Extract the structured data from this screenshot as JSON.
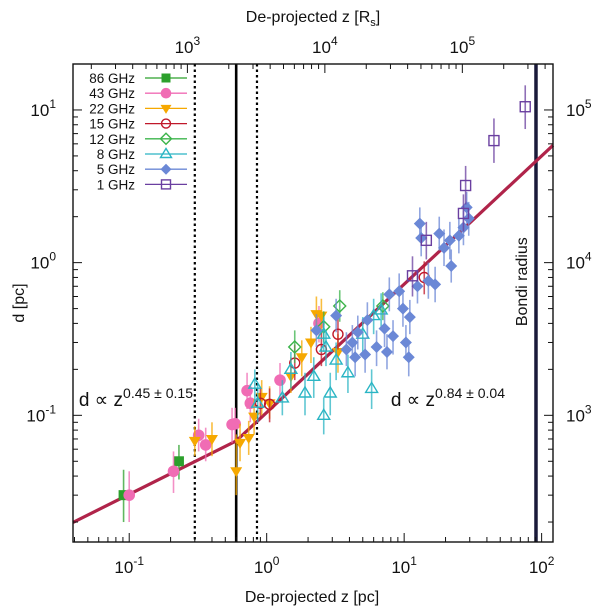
{
  "chart_data": {
    "type": "scatter",
    "title": "",
    "xlabel": "De-projected z [pc]",
    "ylabel": "d [pc]",
    "top_xlabel": "De-projected z [R_s]",
    "top_xlabel_main": "De-projected z [R",
    "top_xlabel_sub": "s",
    "top_xlabel_end": "]",
    "xscale": "log",
    "yscale": "log",
    "xlim": [
      0.039,
      121
    ],
    "ylim": [
      0.0148,
      20
    ],
    "x_ticks": [
      {
        "value": 0.1,
        "base": "10",
        "exp": "-1"
      },
      {
        "value": 1,
        "base": "10",
        "exp": "0"
      },
      {
        "value": 10,
        "base": "10",
        "exp": "1"
      },
      {
        "value": 100,
        "base": "10",
        "exp": "2"
      }
    ],
    "y_ticks": [
      {
        "value": 0.1,
        "base": "10",
        "exp": "-1"
      },
      {
        "value": 1,
        "base": "10",
        "exp": "0"
      },
      {
        "value": 10,
        "base": "10",
        "exp": "1"
      }
    ],
    "top_ticks_rs": [
      {
        "value_pc": 0.265,
        "base": "10",
        "exp": "3"
      },
      {
        "value_pc": 2.65,
        "base": "10",
        "exp": "4"
      },
      {
        "value_pc": 26.5,
        "base": "10",
        "exp": "5"
      }
    ],
    "right_ticks_rs": [
      {
        "value_pc": 0.1,
        "base": "10",
        "exp": "3"
      },
      {
        "value_pc": 1.0,
        "base": "10",
        "exp": "4"
      },
      {
        "value_pc": 10.0,
        "base": "10",
        "exp": "5"
      }
    ],
    "legend_position": "top-left",
    "grid": false,
    "vertical_lines": [
      {
        "name": "break-lower-bound",
        "z": 0.3,
        "style": "dotted",
        "color": "#000000"
      },
      {
        "name": "break-point",
        "z": 0.6,
        "style": "solid",
        "color": "#000000"
      },
      {
        "name": "break-upper-bound",
        "z": 0.85,
        "style": "dotted",
        "color": "#000000"
      },
      {
        "name": "bondi-radius",
        "z": 91,
        "style": "solid",
        "color": "#1a1a3a",
        "label": "Bondi radius"
      }
    ],
    "fit": {
      "color": "#b0244a",
      "break_z": 0.6,
      "break_d": 0.068,
      "inner_slope": 0.45,
      "outer_slope": 0.84
    },
    "annotations": [
      {
        "name": "inner-fit-label",
        "prefix": "d ∝ z",
        "exponent": "0.45 ± 0.15",
        "z": 0.043,
        "d": 0.115
      },
      {
        "name": "outer-fit-label",
        "prefix": "d ∝ z",
        "exponent": "0.84 ± 0.04",
        "z": 8.0,
        "d": 0.115
      }
    ],
    "series": [
      {
        "name": "86 GHz",
        "color": "#2ca02c",
        "marker": "square-filled",
        "points": [
          [
            0.091,
            0.03,
            0.02,
            0.044
          ],
          [
            0.23,
            0.05,
            0.038,
            0.064
          ]
        ]
      },
      {
        "name": "43 GHz",
        "color": "#f06cb4",
        "marker": "circle-filled",
        "points": [
          [
            0.1,
            0.03,
            0.02,
            0.043
          ],
          [
            0.21,
            0.043,
            0.031,
            0.058
          ],
          [
            0.32,
            0.074,
            0.058,
            0.095
          ],
          [
            0.36,
            0.064,
            0.05,
            0.083
          ],
          [
            0.56,
            0.087,
            0.066,
            0.112
          ],
          [
            0.59,
            0.088,
            0.07,
            0.112
          ],
          [
            0.72,
            0.145,
            0.11,
            0.19
          ],
          [
            0.76,
            0.12,
            0.09,
            0.16
          ],
          [
            2.4,
            0.4,
            0.3,
            0.52
          ],
          [
            1.25,
            0.17,
            0.13,
            0.22
          ]
        ]
      },
      {
        "name": "22 GHz",
        "color": "#f6a800",
        "marker": "triangle-down-filled",
        "points": [
          [
            0.3,
            0.068,
            0.054,
            0.085
          ],
          [
            0.4,
            0.07,
            0.054,
            0.09
          ],
          [
            0.6,
            0.043,
            0.03,
            0.075
          ],
          [
            0.64,
            0.066,
            0.05,
            0.088
          ],
          [
            0.74,
            0.071,
            0.055,
            0.092
          ],
          [
            0.81,
            0.098,
            0.075,
            0.128
          ],
          [
            0.92,
            0.132,
            0.1,
            0.17
          ],
          [
            1.05,
            0.12,
            0.095,
            0.155
          ],
          [
            1.5,
            0.18,
            0.14,
            0.24
          ],
          [
            1.8,
            0.24,
            0.18,
            0.31
          ],
          [
            2.3,
            0.46,
            0.35,
            0.6
          ],
          [
            2.5,
            0.45,
            0.34,
            0.58
          ],
          [
            2.1,
            0.3,
            0.22,
            0.38
          ],
          [
            3.3,
            0.26,
            0.19,
            0.34
          ]
        ]
      },
      {
        "name": "15 GHz",
        "color": "#c0182a",
        "marker": "circle-open",
        "points": [
          [
            1.05,
            0.118,
            0.09,
            0.15
          ],
          [
            1.6,
            0.22,
            0.17,
            0.29
          ],
          [
            2.5,
            0.27,
            0.21,
            0.35
          ],
          [
            3.3,
            0.34,
            0.27,
            0.44
          ],
          [
            14.0,
            0.8,
            0.62,
            1.02
          ],
          [
            0.9,
            0.12,
            0.095,
            0.15
          ]
        ]
      },
      {
        "name": "12 GHz",
        "color": "#3cb44b",
        "marker": "diamond-open",
        "points": [
          [
            1.6,
            0.28,
            0.22,
            0.36
          ],
          [
            3.4,
            0.52,
            0.41,
            0.66
          ],
          [
            2.6,
            0.38,
            0.3,
            0.48
          ],
          [
            7.0,
            0.52,
            0.42,
            0.64
          ]
        ]
      },
      {
        "name": "8 GHz",
        "color": "#2ab5c4",
        "marker": "triangle-up-open",
        "points": [
          [
            0.82,
            0.16,
            0.12,
            0.2
          ],
          [
            0.86,
            0.12,
            0.09,
            0.16
          ],
          [
            1.5,
            0.2,
            0.15,
            0.26
          ],
          [
            1.9,
            0.14,
            0.1,
            0.19
          ],
          [
            2.2,
            0.18,
            0.13,
            0.24
          ],
          [
            2.6,
            0.34,
            0.26,
            0.44
          ],
          [
            2.7,
            0.28,
            0.21,
            0.36
          ],
          [
            2.9,
            0.14,
            0.1,
            0.19
          ],
          [
            3.9,
            0.19,
            0.14,
            0.25
          ],
          [
            5.0,
            0.34,
            0.26,
            0.44
          ],
          [
            6.0,
            0.45,
            0.34,
            0.58
          ],
          [
            6.8,
            0.49,
            0.38,
            0.63
          ],
          [
            5.8,
            0.15,
            0.11,
            0.2
          ],
          [
            2.6,
            0.1,
            0.075,
            0.13
          ],
          [
            1.3,
            0.13,
            0.1,
            0.17
          ],
          [
            3.2,
            0.23,
            0.17,
            0.3
          ]
        ]
      },
      {
        "name": "5 GHz",
        "color": "#6b88d6",
        "marker": "diamond-filled",
        "points": [
          [
            2.3,
            0.36,
            0.28,
            0.46
          ],
          [
            3.2,
            0.45,
            0.35,
            0.58
          ],
          [
            3.8,
            0.27,
            0.21,
            0.35
          ],
          [
            4.2,
            0.3,
            0.23,
            0.39
          ],
          [
            4.4,
            0.24,
            0.18,
            0.31
          ],
          [
            4.6,
            0.35,
            0.27,
            0.45
          ],
          [
            5.2,
            0.25,
            0.19,
            0.32
          ],
          [
            5.4,
            0.42,
            0.32,
            0.55
          ],
          [
            6.3,
            0.28,
            0.21,
            0.36
          ],
          [
            7.2,
            0.37,
            0.28,
            0.48
          ],
          [
            7.5,
            0.26,
            0.2,
            0.34
          ],
          [
            8.3,
            0.33,
            0.25,
            0.42
          ],
          [
            9.2,
            0.65,
            0.5,
            0.85
          ],
          [
            9.8,
            0.5,
            0.38,
            0.65
          ],
          [
            10.3,
            0.3,
            0.23,
            0.39
          ],
          [
            10.8,
            0.24,
            0.18,
            0.31
          ],
          [
            11.0,
            0.44,
            0.34,
            0.57
          ],
          [
            12.5,
            0.7,
            0.54,
            0.9
          ],
          [
            13.3,
            1.45,
            1.1,
            1.9
          ],
          [
            13.0,
            1.8,
            1.4,
            2.3
          ],
          [
            15.0,
            0.76,
            0.58,
            1.0
          ],
          [
            16.8,
            0.72,
            0.55,
            0.94
          ],
          [
            18.0,
            1.55,
            1.2,
            2.0
          ],
          [
            19.5,
            1.25,
            0.95,
            1.65
          ],
          [
            21.5,
            1.4,
            1.05,
            1.85
          ],
          [
            25.0,
            1.5,
            1.15,
            1.95
          ],
          [
            27.0,
            1.7,
            1.3,
            2.2
          ],
          [
            28.5,
            2.3,
            1.8,
            2.9
          ],
          [
            29.5,
            1.95,
            1.5,
            2.5
          ],
          [
            22.0,
            0.95,
            0.74,
            1.22
          ],
          [
            7.8,
            0.62,
            0.48,
            0.8
          ]
        ]
      },
      {
        "name": "1 GHz",
        "color": "#6a3fa0",
        "marker": "square-open",
        "points": [
          [
            76,
            10.5,
            7.5,
            14.5
          ],
          [
            45,
            6.3,
            4.5,
            8.8
          ],
          [
            28,
            3.2,
            2.4,
            4.3
          ],
          [
            27,
            2.1,
            1.6,
            2.8
          ],
          [
            14.5,
            1.4,
            1.05,
            1.85
          ],
          [
            11.5,
            0.82,
            0.6,
            1.1
          ]
        ]
      }
    ]
  }
}
